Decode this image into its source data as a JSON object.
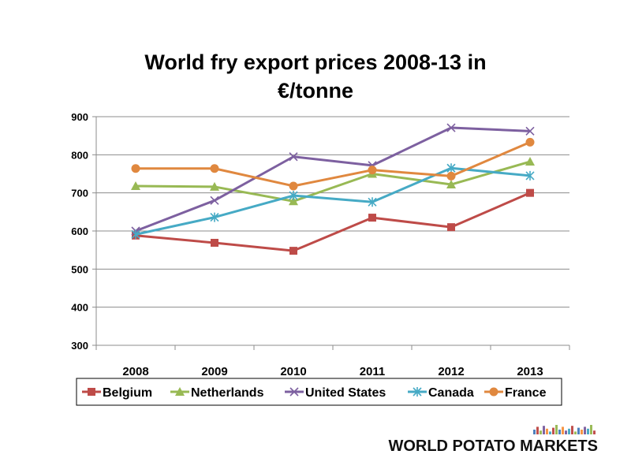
{
  "chart_data": {
    "type": "line",
    "title_lines": [
      "World fry export prices 2008-13 in",
      "€/tonne"
    ],
    "xlabel": "",
    "ylabel": "",
    "x": [
      "2008",
      "2009",
      "2010",
      "2011",
      "2012",
      "2013"
    ],
    "ylim": [
      300,
      900
    ],
    "yticks": [
      "300",
      "400",
      "500",
      "600",
      "700",
      "800",
      "900"
    ],
    "grid": true,
    "legend_position": "bottom",
    "series": [
      {
        "name": "Belgium",
        "color": "#BE4B48",
        "marker": "square",
        "values": [
          588,
          569,
          548,
          635,
          610,
          700
        ]
      },
      {
        "name": "Netherlands",
        "color": "#98B954",
        "marker": "triangle",
        "values": [
          718,
          716,
          678,
          750,
          722,
          782
        ]
      },
      {
        "name": "United States",
        "color": "#7D60A0",
        "marker": "x",
        "values": [
          600,
          680,
          795,
          772,
          871,
          862
        ]
      },
      {
        "name": "Canada",
        "color": "#46AAC5",
        "marker": "star",
        "values": [
          591,
          636,
          693,
          676,
          765,
          745
        ]
      },
      {
        "name": "France",
        "color": "#E0883F",
        "marker": "circle",
        "values": [
          764,
          764,
          718,
          760,
          744,
          833
        ]
      }
    ]
  },
  "logo": {
    "text": "WORLD POTATO MARKETS",
    "bar_colors": [
      "#4F81BD",
      "#C0504D",
      "#9BBB59",
      "#8064A2",
      "#F79646",
      "#4BACC6",
      "#C0504D",
      "#9BBB59",
      "#4F81BD",
      "#F79646",
      "#8064A2",
      "#4BACC6",
      "#C0504D",
      "#9BBB59",
      "#4F81BD",
      "#F79646",
      "#8064A2",
      "#4BACC6",
      "#9BBB59",
      "#C0504D"
    ],
    "bar_levels": [
      0.5,
      0.8,
      0.4,
      0.9,
      0.6,
      0.3,
      0.7,
      1.0,
      0.5,
      0.8,
      0.4,
      0.6,
      0.9,
      0.3,
      0.7,
      0.5,
      0.8,
      0.6,
      1.0,
      0.4
    ]
  }
}
